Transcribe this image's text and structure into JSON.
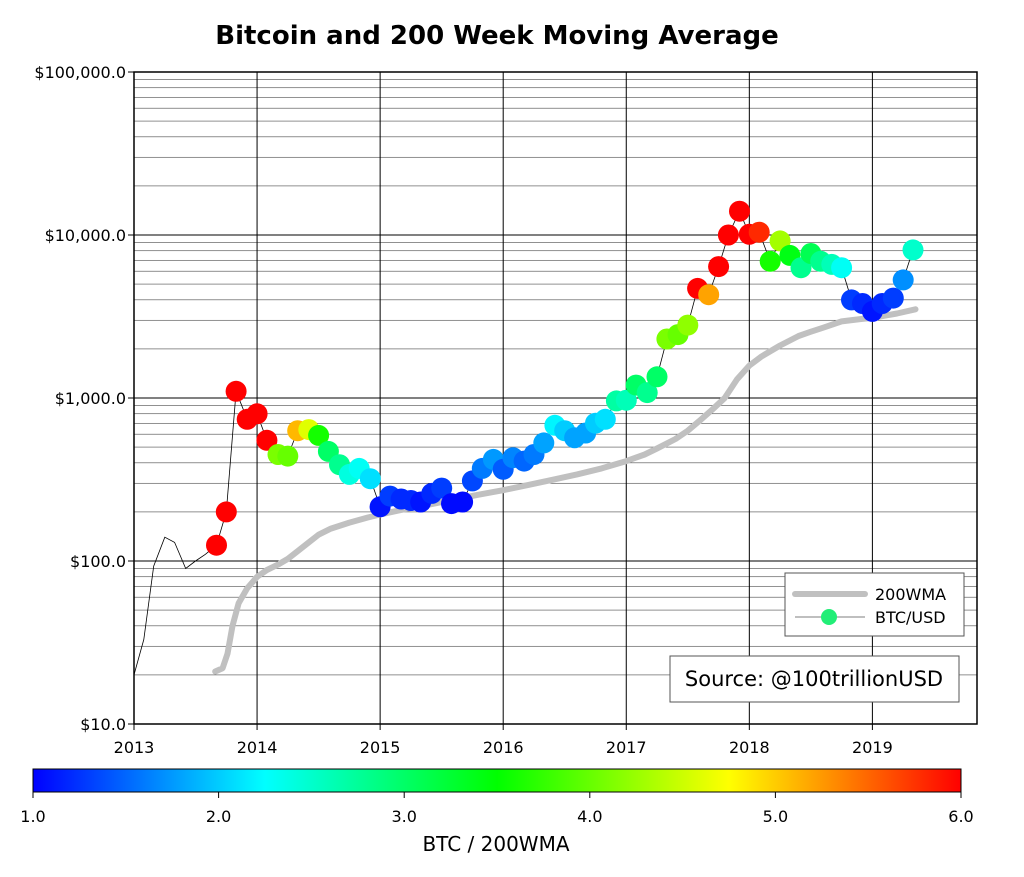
{
  "chart_data": {
    "type": "scatter",
    "title": "Bitcoin and 200 Week Moving Average",
    "y_scale": "log",
    "ylim": [
      10,
      100000
    ],
    "xlim": [
      2013.0,
      2019.85
    ],
    "y_ticks": [
      {
        "value": 10,
        "label": "$10.0"
      },
      {
        "value": 100,
        "label": "$100.0"
      },
      {
        "value": 1000,
        "label": "$1,000.0"
      },
      {
        "value": 10000,
        "label": "$10,000.0"
      },
      {
        "value": 100000,
        "label": "$100,000.0"
      }
    ],
    "x_ticks": [
      {
        "value": 2013,
        "label": "2013"
      },
      {
        "value": 2014,
        "label": "2014"
      },
      {
        "value": 2015,
        "label": "2015"
      },
      {
        "value": 2016,
        "label": "2016"
      },
      {
        "value": 2017,
        "label": "2017"
      },
      {
        "value": 2018,
        "label": "2018"
      },
      {
        "value": 2019,
        "label": "2019"
      }
    ],
    "grid": true,
    "legend": {
      "position": "lower-right",
      "entries": [
        {
          "label": "200WMA",
          "kind": "line",
          "color": "#c0c0c0"
        },
        {
          "label": "BTC/USD",
          "kind": "marker",
          "color": "#22ee77"
        }
      ]
    },
    "annotation": "Source: @100trillionUSD",
    "colorbar": {
      "label": "BTC / 200WMA",
      "range": [
        1.0,
        6.0
      ],
      "ticks": [
        {
          "value": 1.0,
          "label": "1.0"
        },
        {
          "value": 2.0,
          "label": "2.0"
        },
        {
          "value": 3.0,
          "label": "3.0"
        },
        {
          "value": 4.0,
          "label": "4.0"
        },
        {
          "value": 5.0,
          "label": "5.0"
        },
        {
          "value": 6.0,
          "label": "6.0"
        }
      ],
      "colormap": [
        "#0000ff",
        "#00ffff",
        "#00ff00",
        "#ffff00",
        "#ff0000"
      ]
    },
    "series": [
      {
        "name": "200WMA",
        "type": "line",
        "color": "#c0c0c0",
        "x": [
          2013.66,
          2013.72,
          2013.76,
          2013.8,
          2013.85,
          2013.92,
          2014.0,
          2014.08,
          2014.17,
          2014.25,
          2014.33,
          2014.42,
          2014.5,
          2014.6,
          2014.75,
          2014.9,
          2015.0,
          2015.2,
          2015.4,
          2015.6,
          2015.8,
          2016.0,
          2016.2,
          2016.4,
          2016.6,
          2016.8,
          2017.0,
          2017.15,
          2017.25,
          2017.4,
          2017.5,
          2017.6,
          2017.7,
          2017.8,
          2017.9,
          2018.0,
          2018.1,
          2018.25,
          2018.4,
          2018.5,
          2018.6,
          2018.75,
          2018.9,
          2019.0,
          2019.1,
          2019.2,
          2019.35
        ],
        "y": [
          21,
          22,
          27,
          40,
          55,
          68,
          80,
          88,
          95,
          103,
          115,
          130,
          145,
          158,
          172,
          185,
          193,
          208,
          222,
          238,
          255,
          272,
          292,
          315,
          340,
          370,
          410,
          450,
          490,
          560,
          630,
          730,
          850,
          1000,
          1300,
          1580,
          1800,
          2100,
          2400,
          2550,
          2700,
          2950,
          3050,
          3100,
          3200,
          3300,
          3500
        ]
      },
      {
        "name": "BTC/USD",
        "type": "line",
        "color": "#000000",
        "x": [
          2013.0,
          2013.08,
          2013.16,
          2013.25,
          2013.33,
          2013.42,
          2013.5,
          2013.58,
          2013.67,
          2013.75,
          2013.83,
          2013.92,
          2014.0,
          2014.08,
          2014.17,
          2014.25,
          2014.33,
          2014.42,
          2014.5,
          2014.58,
          2014.67,
          2014.75,
          2014.83,
          2014.92,
          2015.0,
          2015.08,
          2015.17,
          2015.25,
          2015.33,
          2015.42,
          2015.5,
          2015.58,
          2015.67,
          2015.75,
          2015.83,
          2015.92,
          2016.0,
          2016.08,
          2016.17,
          2016.25,
          2016.33,
          2016.42,
          2016.5,
          2016.58,
          2016.67,
          2016.75,
          2016.83,
          2016.92,
          2017.0,
          2017.08,
          2017.17,
          2017.25,
          2017.33,
          2017.42,
          2017.5,
          2017.58,
          2017.67,
          2017.75,
          2017.83,
          2017.92,
          2018.0,
          2018.08,
          2018.17,
          2018.25,
          2018.33,
          2018.42,
          2018.5,
          2018.58,
          2018.67,
          2018.75,
          2018.83,
          2018.92,
          2019.0,
          2019.08,
          2019.17,
          2019.25,
          2019.33
        ],
        "y": [
          20,
          33,
          93,
          140,
          130,
          90,
          100,
          110,
          125,
          200,
          1100,
          740,
          800,
          550,
          450,
          440,
          630,
          640,
          590,
          470,
          390,
          340,
          370,
          320,
          215,
          250,
          240,
          235,
          230,
          260,
          280,
          225,
          230,
          310,
          370,
          420,
          365,
          430,
          410,
          450,
          530,
          680,
          630,
          570,
          610,
          700,
          740,
          960,
          970,
          1200,
          1080,
          1350,
          2300,
          2450,
          2800,
          4700,
          4300,
          6400,
          10000,
          14000,
          10100,
          10400,
          6900,
          9200,
          7500,
          6300,
          7700,
          6900,
          6600,
          6300,
          4000,
          3800,
          3400,
          3800,
          4100,
          5300,
          8100
        ]
      }
    ],
    "points": {
      "x": [
        2013.67,
        2013.75,
        2013.83,
        2013.92,
        2014.0,
        2014.08,
        2014.17,
        2014.25,
        2014.33,
        2014.42,
        2014.5,
        2014.58,
        2014.67,
        2014.75,
        2014.83,
        2014.92,
        2015.0,
        2015.08,
        2015.17,
        2015.25,
        2015.33,
        2015.42,
        2015.5,
        2015.58,
        2015.67,
        2015.75,
        2015.83,
        2015.92,
        2016.0,
        2016.08,
        2016.17,
        2016.25,
        2016.33,
        2016.42,
        2016.5,
        2016.58,
        2016.67,
        2016.75,
        2016.83,
        2016.92,
        2017.0,
        2017.08,
        2017.17,
        2017.25,
        2017.33,
        2017.42,
        2017.5,
        2017.58,
        2017.67,
        2017.75,
        2017.83,
        2017.92,
        2018.0,
        2018.08,
        2018.17,
        2018.25,
        2018.33,
        2018.42,
        2018.5,
        2018.58,
        2018.67,
        2018.75,
        2018.83,
        2018.92,
        2019.0,
        2019.08,
        2019.17,
        2019.25,
        2019.33
      ],
      "y": [
        125,
        200,
        1100,
        740,
        800,
        550,
        450,
        440,
        630,
        640,
        590,
        470,
        390,
        340,
        370,
        320,
        215,
        250,
        240,
        235,
        230,
        260,
        280,
        225,
        230,
        310,
        370,
        420,
        365,
        430,
        410,
        450,
        530,
        680,
        630,
        570,
        610,
        700,
        740,
        960,
        970,
        1200,
        1080,
        1350,
        2300,
        2450,
        2800,
        4700,
        4300,
        6400,
        10000,
        14000,
        10100,
        10400,
        6900,
        9200,
        7500,
        6300,
        7700,
        6900,
        6600,
        6300,
        4000,
        3800,
        3400,
        3800,
        4100,
        5300,
        8100
      ],
      "ratio": [
        6.0,
        6.0,
        6.0,
        6.0,
        6.0,
        6.0,
        4.1,
        4.0,
        5.1,
        4.6,
        3.6,
        3.0,
        2.8,
        2.4,
        2.3,
        2.1,
        1.1,
        1.3,
        1.2,
        1.2,
        1.1,
        1.2,
        1.3,
        1.05,
        1.05,
        1.35,
        1.6,
        1.75,
        1.45,
        1.65,
        1.5,
        1.6,
        1.8,
        2.2,
        2.0,
        1.8,
        1.8,
        2.0,
        2.1,
        2.7,
        2.6,
        3.0,
        2.8,
        3.0,
        4.1,
        4.0,
        4.2,
        6.0,
        5.2,
        6.0,
        6.0,
        6.0,
        6.0,
        5.8,
        3.6,
        4.3,
        3.4,
        2.8,
        3.1,
        2.8,
        2.6,
        2.3,
        1.3,
        1.2,
        1.1,
        1.2,
        1.3,
        1.7,
        2.5
      ]
    }
  }
}
